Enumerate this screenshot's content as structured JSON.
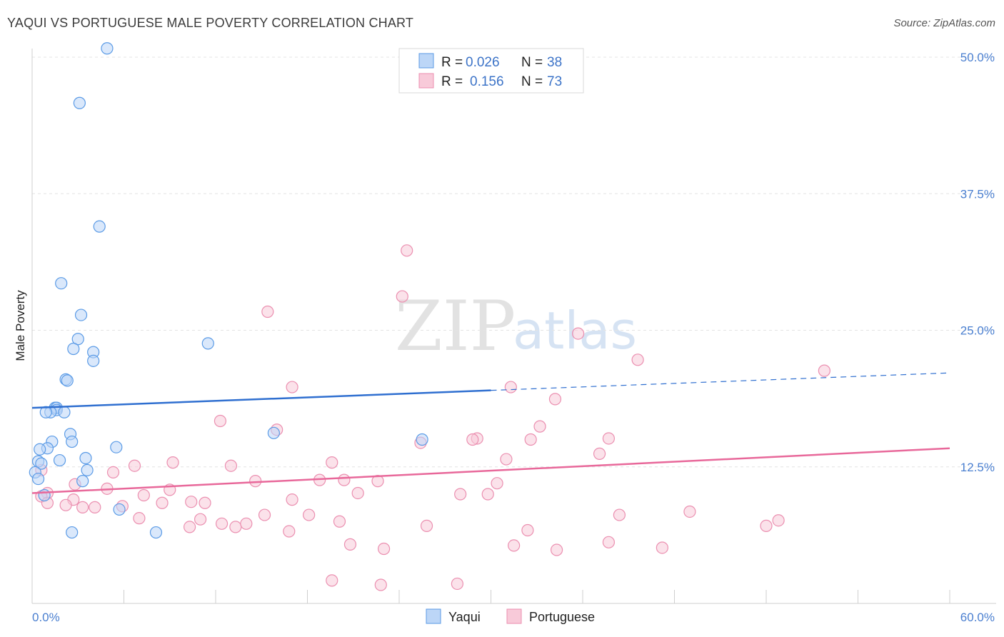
{
  "title": "YAQUI VS PORTUGUESE MALE POVERTY CORRELATION CHART",
  "source": "Source: ZipAtlas.com",
  "watermark": {
    "zip": "ZIP",
    "atlas": "atlas"
  },
  "colors": {
    "yaqui": "#5b9be6",
    "yaqui_fill": "#bcd6f7",
    "portuguese": "#eb8fb0",
    "portuguese_fill": "#f8cad9",
    "blue_line": "#2f6fd0",
    "pink_line": "#e8689a",
    "tick": "#4a7fd0"
  },
  "legend": {
    "r_label": "R =",
    "n_label": "N =",
    "rows": [
      {
        "r": "0.026",
        "n": "38"
      },
      {
        "r": "0.156",
        "n": "73"
      }
    ]
  },
  "chart_data": {
    "type": "scatter",
    "title": "YAQUI VS PORTUGUESE MALE POVERTY CORRELATION CHART",
    "xlabel": "",
    "ylabel": "Male Poverty",
    "xlim": [
      0,
      60
    ],
    "ylim": [
      0,
      50
    ],
    "x_tick_labels": [
      "0.0%",
      "60.0%"
    ],
    "y_ticks": [
      12.5,
      25.0,
      37.5,
      50.0
    ],
    "y_tick_labels": [
      "12.5%",
      "25.0%",
      "37.5%",
      "50.0%"
    ],
    "grid": true,
    "legend_position": "top-center",
    "series": [
      {
        "name": "Yaqui",
        "points": [
          [
            4.9,
            50.8
          ],
          [
            3.1,
            45.8
          ],
          [
            4.4,
            34.5
          ],
          [
            1.9,
            29.3
          ],
          [
            3.2,
            26.4
          ],
          [
            11.5,
            23.8
          ],
          [
            3.0,
            24.2
          ],
          [
            2.7,
            23.3
          ],
          [
            4.0,
            23.0
          ],
          [
            4.0,
            22.2
          ],
          [
            2.2,
            20.5
          ],
          [
            2.3,
            20.4
          ],
          [
            1.5,
            17.9
          ],
          [
            1.6,
            17.9
          ],
          [
            1.6,
            17.7
          ],
          [
            1.2,
            17.5
          ],
          [
            0.9,
            17.5
          ],
          [
            2.1,
            17.5
          ],
          [
            2.5,
            15.5
          ],
          [
            15.8,
            15.6
          ],
          [
            2.6,
            14.8
          ],
          [
            1.3,
            14.8
          ],
          [
            1.0,
            14.2
          ],
          [
            5.5,
            14.3
          ],
          [
            0.5,
            14.1
          ],
          [
            3.5,
            13.3
          ],
          [
            1.8,
            13.1
          ],
          [
            0.4,
            13.0
          ],
          [
            0.6,
            12.8
          ],
          [
            3.6,
            12.2
          ],
          [
            0.2,
            12.0
          ],
          [
            0.4,
            11.4
          ],
          [
            3.3,
            11.2
          ],
          [
            0.8,
            9.9
          ],
          [
            25.5,
            15.0
          ],
          [
            5.7,
            8.6
          ],
          [
            8.1,
            6.5
          ],
          [
            2.6,
            6.5
          ]
        ]
      },
      {
        "name": "Portuguese",
        "points": [
          [
            24.5,
            32.3
          ],
          [
            24.2,
            28.1
          ],
          [
            15.4,
            26.7
          ],
          [
            35.7,
            24.7
          ],
          [
            39.6,
            22.3
          ],
          [
            51.8,
            21.3
          ],
          [
            17.0,
            19.8
          ],
          [
            31.3,
            19.8
          ],
          [
            34.2,
            18.7
          ],
          [
            12.3,
            16.7
          ],
          [
            16.0,
            15.9
          ],
          [
            33.2,
            16.2
          ],
          [
            29.1,
            15.1
          ],
          [
            28.8,
            15.0
          ],
          [
            32.6,
            15.0
          ],
          [
            37.7,
            15.1
          ],
          [
            25.4,
            14.7
          ],
          [
            37.1,
            13.7
          ],
          [
            31.0,
            13.2
          ],
          [
            9.2,
            12.9
          ],
          [
            13.0,
            12.6
          ],
          [
            19.6,
            12.9
          ],
          [
            6.7,
            12.6
          ],
          [
            0.6,
            12.2
          ],
          [
            5.3,
            12.0
          ],
          [
            14.6,
            11.2
          ],
          [
            18.8,
            11.3
          ],
          [
            20.4,
            11.3
          ],
          [
            22.6,
            11.2
          ],
          [
            30.4,
            11.0
          ],
          [
            2.8,
            10.9
          ],
          [
            4.9,
            10.5
          ],
          [
            9.0,
            10.4
          ],
          [
            1.0,
            10.1
          ],
          [
            0.6,
            9.8
          ],
          [
            21.3,
            10.1
          ],
          [
            28.0,
            10.0
          ],
          [
            7.3,
            9.9
          ],
          [
            2.7,
            9.5
          ],
          [
            17.0,
            9.5
          ],
          [
            10.4,
            9.3
          ],
          [
            11.3,
            9.2
          ],
          [
            1.0,
            9.2
          ],
          [
            3.3,
            8.8
          ],
          [
            5.9,
            8.9
          ],
          [
            8.5,
            9.2
          ],
          [
            2.2,
            9.0
          ],
          [
            4.1,
            8.8
          ],
          [
            15.2,
            8.1
          ],
          [
            18.1,
            8.1
          ],
          [
            7.0,
            7.8
          ],
          [
            11.0,
            7.7
          ],
          [
            12.4,
            7.3
          ],
          [
            13.3,
            7.0
          ],
          [
            14.0,
            7.3
          ],
          [
            16.8,
            6.6
          ],
          [
            20.1,
            7.5
          ],
          [
            10.3,
            7.0
          ],
          [
            25.8,
            7.1
          ],
          [
            32.4,
            6.7
          ],
          [
            38.4,
            8.1
          ],
          [
            43.0,
            8.4
          ],
          [
            48.8,
            7.6
          ],
          [
            48.0,
            7.1
          ],
          [
            29.8,
            10.0
          ],
          [
            20.8,
            5.4
          ],
          [
            23.0,
            5.0
          ],
          [
            31.5,
            5.3
          ],
          [
            34.3,
            4.9
          ],
          [
            37.7,
            5.6
          ],
          [
            41.2,
            5.1
          ],
          [
            19.6,
            2.1
          ],
          [
            27.8,
            1.8
          ],
          [
            22.8,
            1.7
          ]
        ]
      }
    ],
    "trend_lines": [
      {
        "series": "Yaqui",
        "y_at_x0": 17.9,
        "y_at_x30": 19.5,
        "y_at_x60": 21.1,
        "solid_until_x": 30
      },
      {
        "series": "Portuguese",
        "y_at_x0": 10.1,
        "y_at_x60": 14.2
      }
    ]
  },
  "bottom_legend": [
    {
      "label": "Yaqui"
    },
    {
      "label": "Portuguese"
    }
  ]
}
